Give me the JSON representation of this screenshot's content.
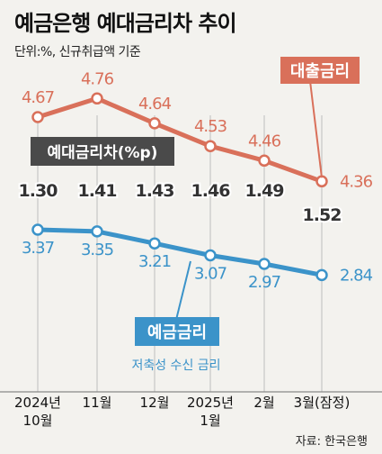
{
  "title": "예금은행 예대금리차 추이",
  "subtitle": "단위:%, 신규취급액 기준",
  "source": "자료: 한국은행",
  "chart_data": {
    "type": "line",
    "categories": [
      [
        "2024년",
        "10월"
      ],
      [
        "11월"
      ],
      [
        "12월"
      ],
      [
        "2025년",
        "1월"
      ],
      [
        "2월"
      ],
      [
        "3월(잠정)"
      ]
    ],
    "series": [
      {
        "name": "대출금리",
        "values": [
          4.67,
          4.76,
          4.64,
          4.53,
          4.46,
          4.36
        ],
        "color": "#d9705a"
      },
      {
        "name": "예금금리",
        "sublabel": "저축성 수신 금리",
        "values": [
          3.37,
          3.35,
          3.21,
          3.07,
          2.97,
          2.84
        ],
        "color": "#3b93c9"
      }
    ],
    "spread": {
      "name": "예대금리차(%p)",
      "values": [
        1.3,
        1.41,
        1.43,
        1.46,
        1.49,
        1.52
      ],
      "labels": [
        "1.30",
        "1.41",
        "1.43",
        "1.46",
        "1.49",
        "1.52"
      ]
    },
    "label_color_dark": "#333333"
  }
}
